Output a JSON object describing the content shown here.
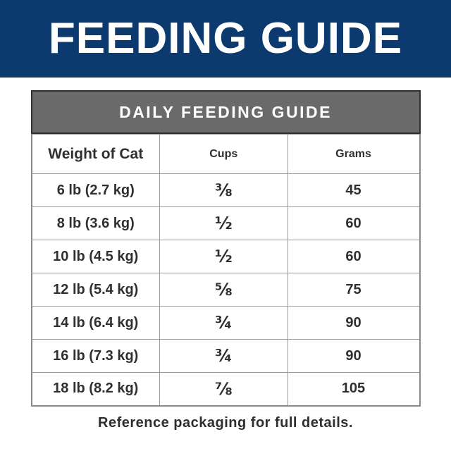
{
  "banner": {
    "title": "FEEDING GUIDE",
    "bg_color": "#0c3a6e",
    "text_color": "#ffffff"
  },
  "table": {
    "title": "DAILY FEEDING GUIDE",
    "title_bg_color": "#6a6a6a",
    "columns": [
      "Weight of Cat",
      "Cups",
      "Grams"
    ],
    "rows": [
      {
        "weight": "6 lb (2.7 kg)",
        "cups": "⅜",
        "grams": "45"
      },
      {
        "weight": "8 lb (3.6 kg)",
        "cups": "½",
        "grams": "60"
      },
      {
        "weight": "10 lb (4.5 kg)",
        "cups": "½",
        "grams": "60"
      },
      {
        "weight": "12 lb (5.4 kg)",
        "cups": "⅝",
        "grams": "75"
      },
      {
        "weight": "14 lb (6.4 kg)",
        "cups": "¾",
        "grams": "90"
      },
      {
        "weight": "16 lb (7.3 kg)",
        "cups": "¾",
        "grams": "90"
      },
      {
        "weight": "18 lb (8.2 kg)",
        "cups": "⅞",
        "grams": "105"
      }
    ]
  },
  "footer": {
    "note": "Reference packaging for full details."
  }
}
